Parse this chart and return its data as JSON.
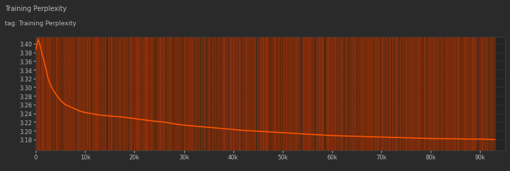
{
  "title": "Training Perplexity",
  "subtitle": "tag: Training Perplexity",
  "background_color": "#2a2a2a",
  "plot_bg_color": "#232323",
  "line_color": "#ff5500",
  "raw_line_color": "#7a2e08",
  "grid_color": "#4a4a4a",
  "text_color": "#bbbbbb",
  "xlim": [
    0,
    95000
  ],
  "ylim": [
    3.155,
    3.415
  ],
  "yticks": [
    3.18,
    3.2,
    3.22,
    3.24,
    3.26,
    3.28,
    3.3,
    3.32,
    3.34,
    3.36,
    3.38,
    3.4
  ],
  "xtick_labels": [
    "0",
    "10k",
    "20k",
    "30k",
    "40k",
    "50k",
    "60k",
    "70k",
    "80k",
    "90k"
  ],
  "xtick_values": [
    0,
    10000,
    20000,
    30000,
    40000,
    50000,
    60000,
    70000,
    80000,
    90000
  ],
  "smooth_x": [
    0,
    200,
    500,
    800,
    1200,
    1800,
    2500,
    3200,
    4000,
    5000,
    6000,
    7000,
    8000,
    9000,
    10000,
    11000,
    12000,
    13000,
    14000,
    15000,
    16000,
    17000,
    18000,
    20000,
    22000,
    24000,
    26000,
    28000,
    30000,
    33000,
    36000,
    39000,
    42000,
    45000,
    48000,
    51000,
    54000,
    57000,
    60000,
    63000,
    66000,
    69000,
    72000,
    75000,
    78000,
    81000,
    84000,
    87000,
    90000,
    93000
  ],
  "smooth_y": [
    3.385,
    3.395,
    3.41,
    3.4,
    3.38,
    3.355,
    3.32,
    3.3,
    3.285,
    3.27,
    3.26,
    3.255,
    3.25,
    3.245,
    3.242,
    3.24,
    3.238,
    3.236,
    3.235,
    3.234,
    3.233,
    3.232,
    3.231,
    3.228,
    3.225,
    3.222,
    3.22,
    3.216,
    3.213,
    3.21,
    3.207,
    3.204,
    3.201,
    3.199,
    3.197,
    3.195,
    3.193,
    3.191,
    3.189,
    3.188,
    3.187,
    3.186,
    3.185,
    3.184,
    3.183,
    3.182,
    3.182,
    3.181,
    3.181,
    3.18
  ],
  "figsize": [
    7.45,
    2.51
  ],
  "dpi": 100
}
